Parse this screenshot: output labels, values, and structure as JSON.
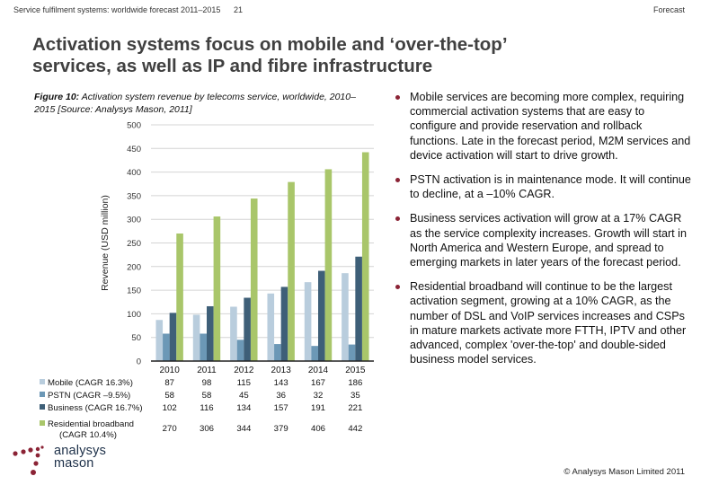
{
  "header": {
    "left": "Service fulfilment systems: worldwide forecast 2011–2015",
    "page_number": "21",
    "right": "Forecast"
  },
  "title_line1": "Activation systems focus on mobile and ‘over-the-top’",
  "title_line2": "services, as well as IP and fibre infrastructure",
  "figure": {
    "label": "Figure 10:",
    "caption_rest": " Activation system revenue by telecoms service, worldwide, 2010–2015 [Source: Analysys Mason, 2011]"
  },
  "colors": {
    "mobile": "#b9cddd",
    "pstn": "#6c98b6",
    "business": "#3e5f78",
    "broadband": "#a9c66a",
    "bullet": "#8b2335",
    "logo_dots": "#8b2335",
    "logo_text": "#1c2f48"
  },
  "chart_data": {
    "type": "bar",
    "title": "Activation system revenue by telecoms service, worldwide, 2010–2015",
    "xlabel": "",
    "ylabel": "Revenue (USD million)",
    "ylim": [
      0,
      500
    ],
    "yticks": [
      0,
      50,
      100,
      150,
      200,
      250,
      300,
      350,
      400,
      450,
      500
    ],
    "grid": true,
    "legend_placement": "bottom-left (data table)",
    "categories": [
      "2010",
      "2011",
      "2012",
      "2013",
      "2014",
      "2015"
    ],
    "series": [
      {
        "name": "Mobile (CAGR 16.3%)",
        "key": "mobile",
        "values": [
          87,
          98,
          115,
          143,
          167,
          186
        ]
      },
      {
        "name": "PSTN (CAGR –9.5%)",
        "key": "pstn",
        "values": [
          58,
          58,
          45,
          36,
          32,
          35
        ]
      },
      {
        "name": "Business (CAGR 16.7%)",
        "key": "business",
        "values": [
          102,
          116,
          134,
          157,
          191,
          221
        ]
      },
      {
        "name": "Residential broadband",
        "name_line2": "(CAGR 10.4%)",
        "key": "broadband",
        "values": [
          270,
          306,
          344,
          379,
          406,
          442
        ]
      }
    ]
  },
  "bullets": [
    "Mobile services are becoming more complex, requiring commercial activation systems that are easy to configure and provide reservation and rollback functions. Late in the forecast period, M2M services and device activation will start to drive growth.",
    "PSTN activation is in maintenance mode. It will continue to decline, at a –10% CAGR.",
    "Business services activation will grow at a 17% CAGR as the service complexity increases. Growth will start in North America and Western Europe, and spread to emerging markets in later years of the forecast period.",
    "Residential broadband will continue to be the largest activation segment, growing at a 10% CAGR, as the number of DSL and VoIP services increases and CSPs in mature markets activate more FTTH, IPTV and other advanced, complex 'over-the-top' and double-sided business model services."
  ],
  "logo": {
    "line1": "analysys",
    "line2": "mason"
  },
  "footer": {
    "copyright": "© Analysys Mason Limited 2011"
  }
}
